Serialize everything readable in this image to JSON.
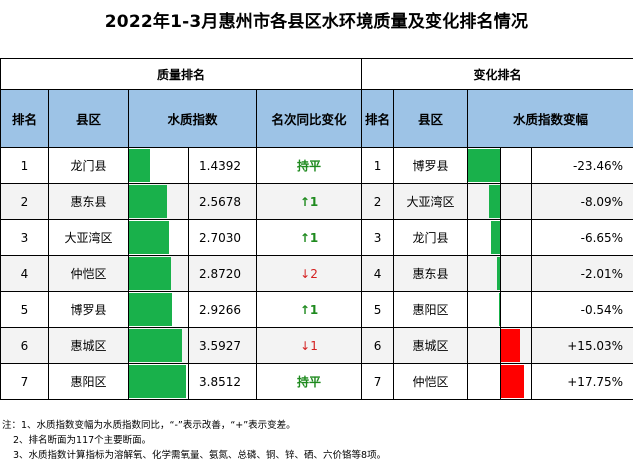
{
  "title": "2022年1-3月惠州市各县区水环境质量及变化排名情况",
  "sections": {
    "quality": "质量排名",
    "change": "变化排名"
  },
  "headers": {
    "rank": "排名",
    "district": "县区",
    "wqi": "水质指数",
    "yoy": "名次同比变化",
    "rank2": "排名",
    "district2": "县区",
    "change": "水质指数变幅"
  },
  "quality_rows": [
    {
      "rank": "1",
      "district": "龙门县",
      "wqi": "1.4392",
      "wqi_num": 1.4392,
      "yoy": "持平",
      "trend": "flat"
    },
    {
      "rank": "2",
      "district": "惠东县",
      "wqi": "2.5678",
      "wqi_num": 2.5678,
      "yoy": "↑1",
      "trend": "up"
    },
    {
      "rank": "3",
      "district": "大亚湾区",
      "wqi": "2.7030",
      "wqi_num": 2.703,
      "yoy": "↑1",
      "trend": "up"
    },
    {
      "rank": "4",
      "district": "仲恺区",
      "wqi": "2.8720",
      "wqi_num": 2.872,
      "yoy": "↓2",
      "trend": "down"
    },
    {
      "rank": "5",
      "district": "博罗县",
      "wqi": "2.9266",
      "wqi_num": 2.9266,
      "yoy": "↑1",
      "trend": "up"
    },
    {
      "rank": "6",
      "district": "惠城区",
      "wqi": "3.5927",
      "wqi_num": 3.5927,
      "yoy": "↓1",
      "trend": "down"
    },
    {
      "rank": "7",
      "district": "惠阳区",
      "wqi": "3.8512",
      "wqi_num": 3.8512,
      "yoy": "持平",
      "trend": "flat"
    }
  ],
  "change_rows": [
    {
      "rank": "1",
      "district": "博罗县",
      "change": "-23.46%",
      "change_num": -23.46
    },
    {
      "rank": "2",
      "district": "大亚湾区",
      "change": "-8.09%",
      "change_num": -8.09
    },
    {
      "rank": "3",
      "district": "龙门县",
      "change": "-6.65%",
      "change_num": -6.65
    },
    {
      "rank": "4",
      "district": "惠东县",
      "change": "-2.01%",
      "change_num": -2.01
    },
    {
      "rank": "5",
      "district": "惠阳区",
      "change": "-0.54%",
      "change_num": -0.54
    },
    {
      "rank": "6",
      "district": "惠城区",
      "change": "+15.03%",
      "change_num": 15.03
    },
    {
      "rank": "7",
      "district": "仲恺区",
      "change": "+17.75%",
      "change_num": 17.75
    }
  ],
  "colors": {
    "header_bg": "#9dc3e6",
    "good_bar": "#19b14b",
    "bad_bar": "#ff0000"
  },
  "notes": [
    "注：1、水质指数变幅为水质指数同比，“-”表示改善，“+”表示变差。",
    "2、排名断面为117个主要断面。",
    "3、水质指数计算指标为溶解氧、化学需氧量、氨氮、总磷、铜、锌、硒、六价铬等8项。"
  ]
}
